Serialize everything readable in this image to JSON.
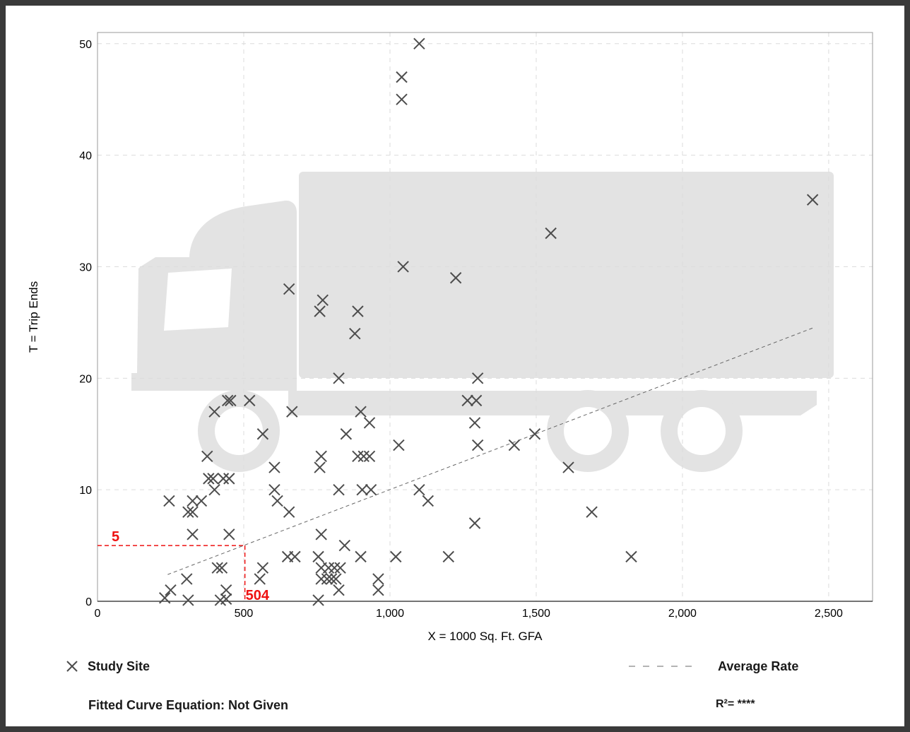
{
  "chart_data": {
    "type": "scatter",
    "xlabel": "X = 1000 Sq. Ft. GFA",
    "ylabel": "T = Trip Ends",
    "xlim": [
      0,
      2650
    ],
    "ylim": [
      0,
      51
    ],
    "x_ticks": [
      0,
      500,
      1000,
      1500,
      2000,
      2500
    ],
    "x_tick_labels": [
      "0",
      "500",
      "1,000",
      "1,500",
      "2,000",
      "2,500"
    ],
    "y_ticks": [
      0,
      10,
      20,
      30,
      40,
      50
    ],
    "y_tick_labels": [
      "0",
      "10",
      "20",
      "30",
      "40",
      "50"
    ],
    "grid": true,
    "marker_color": "#4d4d4d",
    "watermark": "truck-silhouette",
    "series": [
      {
        "name": "Study Site",
        "marker": "x",
        "points": [
          [
            1100,
            50
          ],
          [
            1040,
            47
          ],
          [
            1040,
            45
          ],
          [
            2445,
            36
          ],
          [
            1550,
            33
          ],
          [
            1045,
            30
          ],
          [
            1225,
            29
          ],
          [
            655,
            28
          ],
          [
            770,
            27
          ],
          [
            760,
            26
          ],
          [
            890,
            26
          ],
          [
            880,
            24
          ],
          [
            825,
            20
          ],
          [
            1300,
            20
          ],
          [
            1265,
            18
          ],
          [
            1295,
            18
          ],
          [
            445,
            18
          ],
          [
            455,
            18
          ],
          [
            520,
            18
          ],
          [
            400,
            17
          ],
          [
            665,
            17
          ],
          [
            900,
            17
          ],
          [
            1290,
            16
          ],
          [
            930,
            16
          ],
          [
            565,
            15
          ],
          [
            850,
            15
          ],
          [
            1495,
            15
          ],
          [
            1030,
            14
          ],
          [
            1300,
            14
          ],
          [
            1425,
            14
          ],
          [
            375,
            13
          ],
          [
            765,
            13
          ],
          [
            890,
            13
          ],
          [
            910,
            13
          ],
          [
            930,
            13
          ],
          [
            760,
            12
          ],
          [
            605,
            12
          ],
          [
            1610,
            12
          ],
          [
            380,
            11
          ],
          [
            395,
            11
          ],
          [
            430,
            11
          ],
          [
            450,
            11
          ],
          [
            400,
            10
          ],
          [
            605,
            10
          ],
          [
            825,
            10
          ],
          [
            905,
            10
          ],
          [
            935,
            10
          ],
          [
            1100,
            10
          ],
          [
            245,
            9
          ],
          [
            325,
            9
          ],
          [
            355,
            9
          ],
          [
            615,
            9
          ],
          [
            1130,
            9
          ],
          [
            310,
            8
          ],
          [
            325,
            8
          ],
          [
            655,
            8
          ],
          [
            1690,
            8
          ],
          [
            1290,
            7
          ],
          [
            325,
            6
          ],
          [
            450,
            6
          ],
          [
            765,
            6
          ],
          [
            845,
            5
          ],
          [
            565,
            3
          ],
          [
            410,
            3
          ],
          [
            425,
            3
          ],
          [
            765,
            3
          ],
          [
            790,
            3
          ],
          [
            810,
            3
          ],
          [
            830,
            3
          ],
          [
            650,
            4
          ],
          [
            675,
            4
          ],
          [
            755,
            4
          ],
          [
            900,
            4
          ],
          [
            1020,
            4
          ],
          [
            1200,
            4
          ],
          [
            1825,
            4
          ],
          [
            555,
            2
          ],
          [
            305,
            2
          ],
          [
            765,
            2
          ],
          [
            785,
            2
          ],
          [
            800,
            2
          ],
          [
            815,
            2
          ],
          [
            960,
            2
          ],
          [
            250,
            1
          ],
          [
            440,
            1
          ],
          [
            825,
            1
          ],
          [
            960,
            1
          ],
          [
            230,
            0.3
          ],
          [
            310,
            0.1
          ],
          [
            420,
            0.1
          ],
          [
            440,
            0.2
          ],
          [
            755,
            0.1
          ]
        ]
      },
      {
        "name": "Average Rate",
        "line_style": "dashed",
        "line_color": "#666666",
        "x": [
          240,
          2445
        ],
        "y": [
          2.4,
          24.5
        ]
      }
    ],
    "annotations": [
      {
        "label": "5",
        "x": 504,
        "y": 5,
        "color": "#ee1111",
        "style": "dashed-guide"
      },
      {
        "label": "504",
        "x": 504,
        "y": 5,
        "color": "#ee1111"
      }
    ]
  },
  "legend": {
    "study_site_label": "Study Site",
    "average_rate_label": "Average Rate",
    "fitted_curve_label": "Fitted Curve Equation: Not Given",
    "r_squared_label": "R²= ****"
  }
}
